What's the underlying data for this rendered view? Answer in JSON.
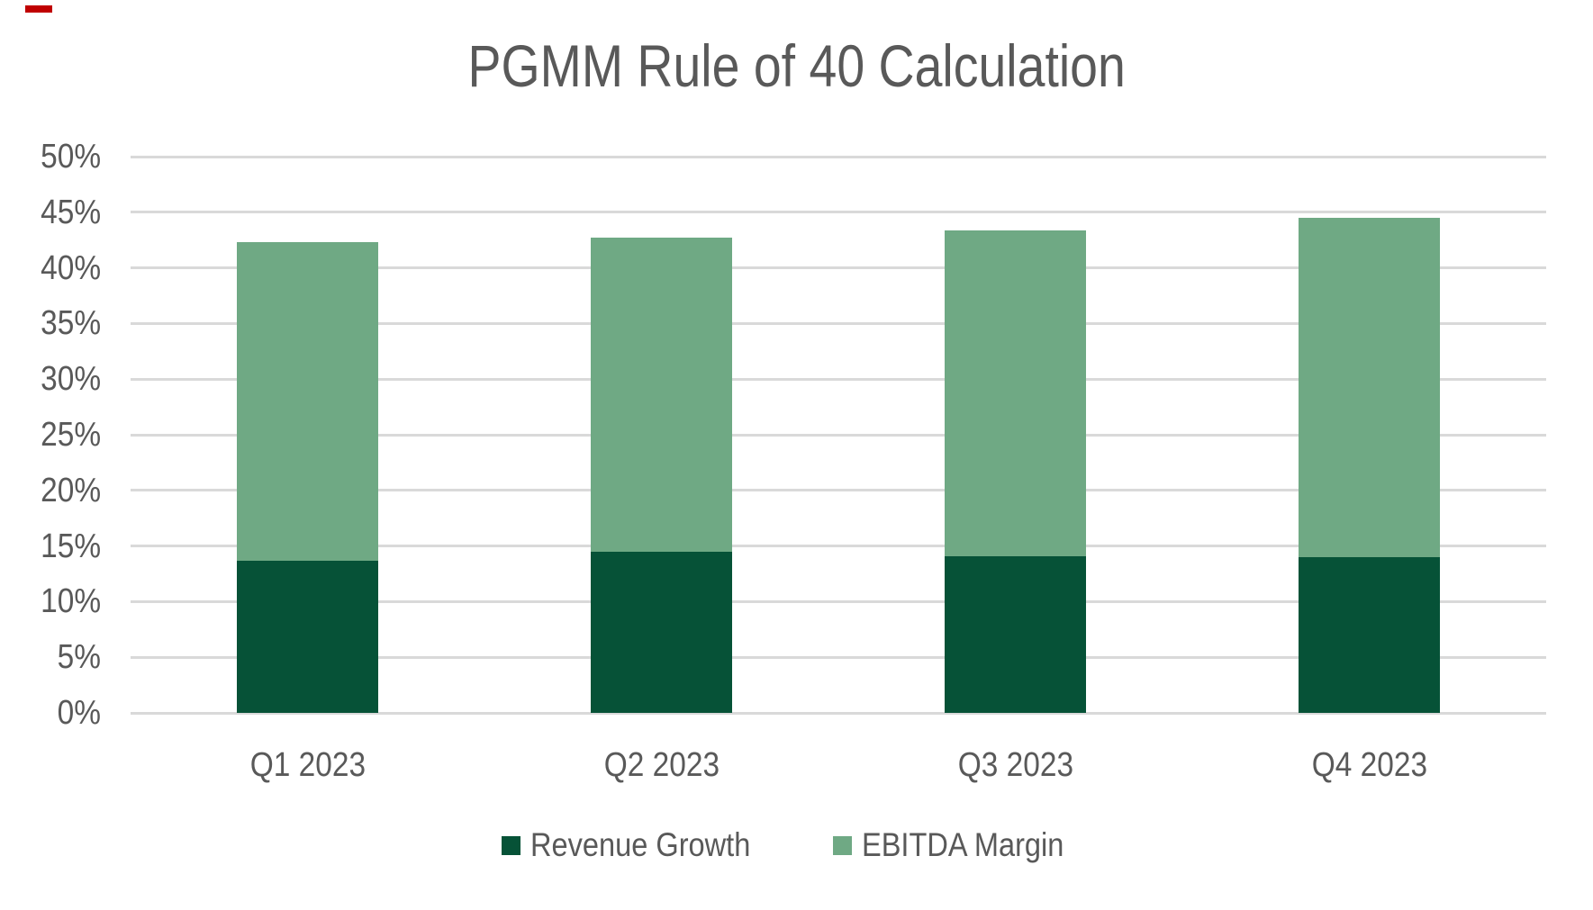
{
  "chart_data": {
    "type": "bar",
    "stacked": true,
    "title": "PGMM Rule of 40 Calculation",
    "categories": [
      "Q1 2023",
      "Q2 2023",
      "Q3 2023",
      "Q4 2023"
    ],
    "series": [
      {
        "name": "Revenue Growth",
        "color": "#065237",
        "values": [
          13.7,
          14.5,
          14.1,
          14.0
        ]
      },
      {
        "name": "EBITDA Margin",
        "color": "#6FA984",
        "values": [
          28.6,
          28.2,
          29.3,
          30.5
        ]
      }
    ],
    "totals": [
      42.3,
      42.7,
      43.4,
      44.5
    ],
    "xlabel": "",
    "ylabel": "",
    "ylim": [
      0,
      50
    ],
    "ytick_step": 5,
    "ytick_labels": [
      "0%",
      "5%",
      "10%",
      "15%",
      "20%",
      "25%",
      "30%",
      "35%",
      "40%",
      "45%",
      "50%"
    ],
    "grid": "horizontal",
    "legend_position": "bottom",
    "colors": {
      "text": "#595959",
      "gridline": "#D9D9D9",
      "background": "#FFFFFF",
      "top_left_mark": "#C00000"
    }
  }
}
